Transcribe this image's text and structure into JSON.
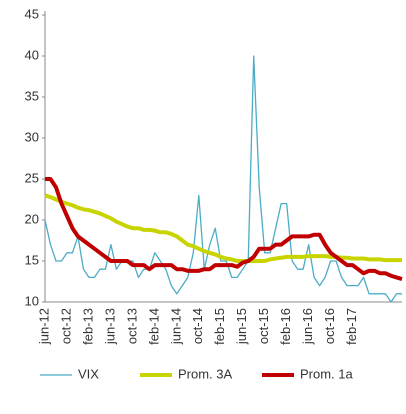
{
  "chart_data": {
    "type": "line",
    "categories": [
      "jun-12",
      null,
      null,
      null,
      "oct-12",
      null,
      null,
      null,
      "feb-13",
      null,
      null,
      null,
      "jun-13",
      null,
      null,
      null,
      "oct-13",
      null,
      null,
      null,
      "feb-14",
      null,
      null,
      null,
      "jun-14",
      null,
      null,
      null,
      "oct-14",
      null,
      null,
      null,
      "feb-15",
      null,
      null,
      null,
      "jun-15",
      null,
      null,
      null,
      "oct-15",
      null,
      null,
      null,
      "feb-16",
      null,
      null,
      null,
      "jun-16",
      null,
      null,
      null,
      "oct-16",
      null,
      null,
      null,
      "feb-17",
      null,
      null,
      null,
      null,
      null,
      null,
      null,
      null,
      null
    ],
    "series": [
      {
        "name": "VIX",
        "color": "#4bacc6",
        "width": 1.3,
        "values": [
          20,
          17,
          15,
          15,
          16,
          16,
          18,
          14,
          13,
          13,
          14,
          14,
          17,
          14,
          15,
          15,
          15,
          13,
          14,
          14,
          16,
          15,
          14,
          12,
          11,
          12,
          13,
          16,
          23,
          14,
          17,
          19,
          15,
          15,
          13,
          13,
          14,
          15,
          40,
          24,
          16,
          16,
          19,
          22,
          22,
          15,
          14,
          14,
          17,
          13,
          12,
          13,
          15,
          15,
          13,
          12,
          12,
          12,
          13,
          11,
          11,
          11,
          11,
          10,
          11,
          11
        ]
      },
      {
        "name": "Prom. 3A",
        "color": "#c8d400",
        "width": 4,
        "values": [
          23,
          22.8,
          22.5,
          22.2,
          22,
          21.8,
          21.5,
          21.3,
          21.2,
          21,
          20.8,
          20.5,
          20.2,
          19.8,
          19.5,
          19.2,
          19,
          19,
          18.8,
          18.8,
          18.7,
          18.5,
          18.5,
          18.3,
          18,
          17.5,
          17,
          16.8,
          16.5,
          16.2,
          16,
          15.8,
          15.5,
          15.3,
          15.2,
          15,
          15,
          15,
          15,
          15,
          15,
          15.2,
          15.3,
          15.4,
          15.5,
          15.5,
          15.5,
          15.5,
          15.6,
          15.6,
          15.6,
          15.6,
          15.5,
          15.5,
          15.4,
          15.4,
          15.3,
          15.3,
          15.3,
          15.2,
          15.2,
          15.2,
          15.1,
          15.1,
          15.1,
          15.1
        ]
      },
      {
        "name": "Prom. 1a",
        "color": "#c00000",
        "width": 4,
        "values": [
          25,
          25,
          24,
          22,
          20.5,
          19,
          18,
          17.5,
          17,
          16.5,
          16,
          15.5,
          15,
          15,
          15,
          15,
          14.5,
          14.5,
          14.5,
          14,
          14.5,
          14.5,
          14.5,
          14.5,
          14,
          14,
          13.8,
          13.8,
          13.8,
          14,
          14,
          14.5,
          14.5,
          14.5,
          14.5,
          14.3,
          14.8,
          15,
          15.5,
          16.5,
          16.5,
          16.5,
          17,
          17,
          17.5,
          18,
          18,
          18,
          18,
          18.2,
          18.2,
          17,
          16,
          15.5,
          15,
          14.5,
          14.5,
          14,
          13.5,
          13.8,
          13.8,
          13.5,
          13.5,
          13.2,
          13,
          12.8
        ]
      }
    ],
    "ylim": [
      10,
      45
    ],
    "yticks": [
      10,
      15,
      20,
      25,
      30,
      35,
      40,
      45
    ],
    "grid": false
  }
}
